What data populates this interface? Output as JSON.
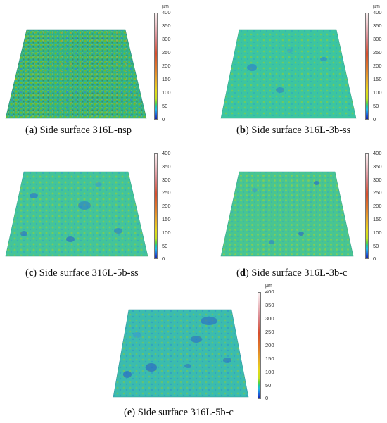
{
  "colorbar": {
    "unit": "µm",
    "ticks": [
      "400",
      "350",
      "300",
      "250",
      "200",
      "150",
      "100",
      "50",
      "0"
    ],
    "colors": [
      "#1522a8",
      "#20b8e8",
      "#5fd23c",
      "#e6d81a",
      "#e07a2a",
      "#d64d2e",
      "#fbf1f2"
    ]
  },
  "panels": [
    {
      "letter": "a",
      "caption": "Side surface 316L-nsp"
    },
    {
      "letter": "b",
      "caption": "Side surface 316L-3b-ss"
    },
    {
      "letter": "c",
      "caption": "Side surface 316L-5b-ss"
    },
    {
      "letter": "d",
      "caption": "Side surface 316L-3b-c"
    },
    {
      "letter": "e",
      "caption": "Side surface 316L-5b-c"
    }
  ]
}
